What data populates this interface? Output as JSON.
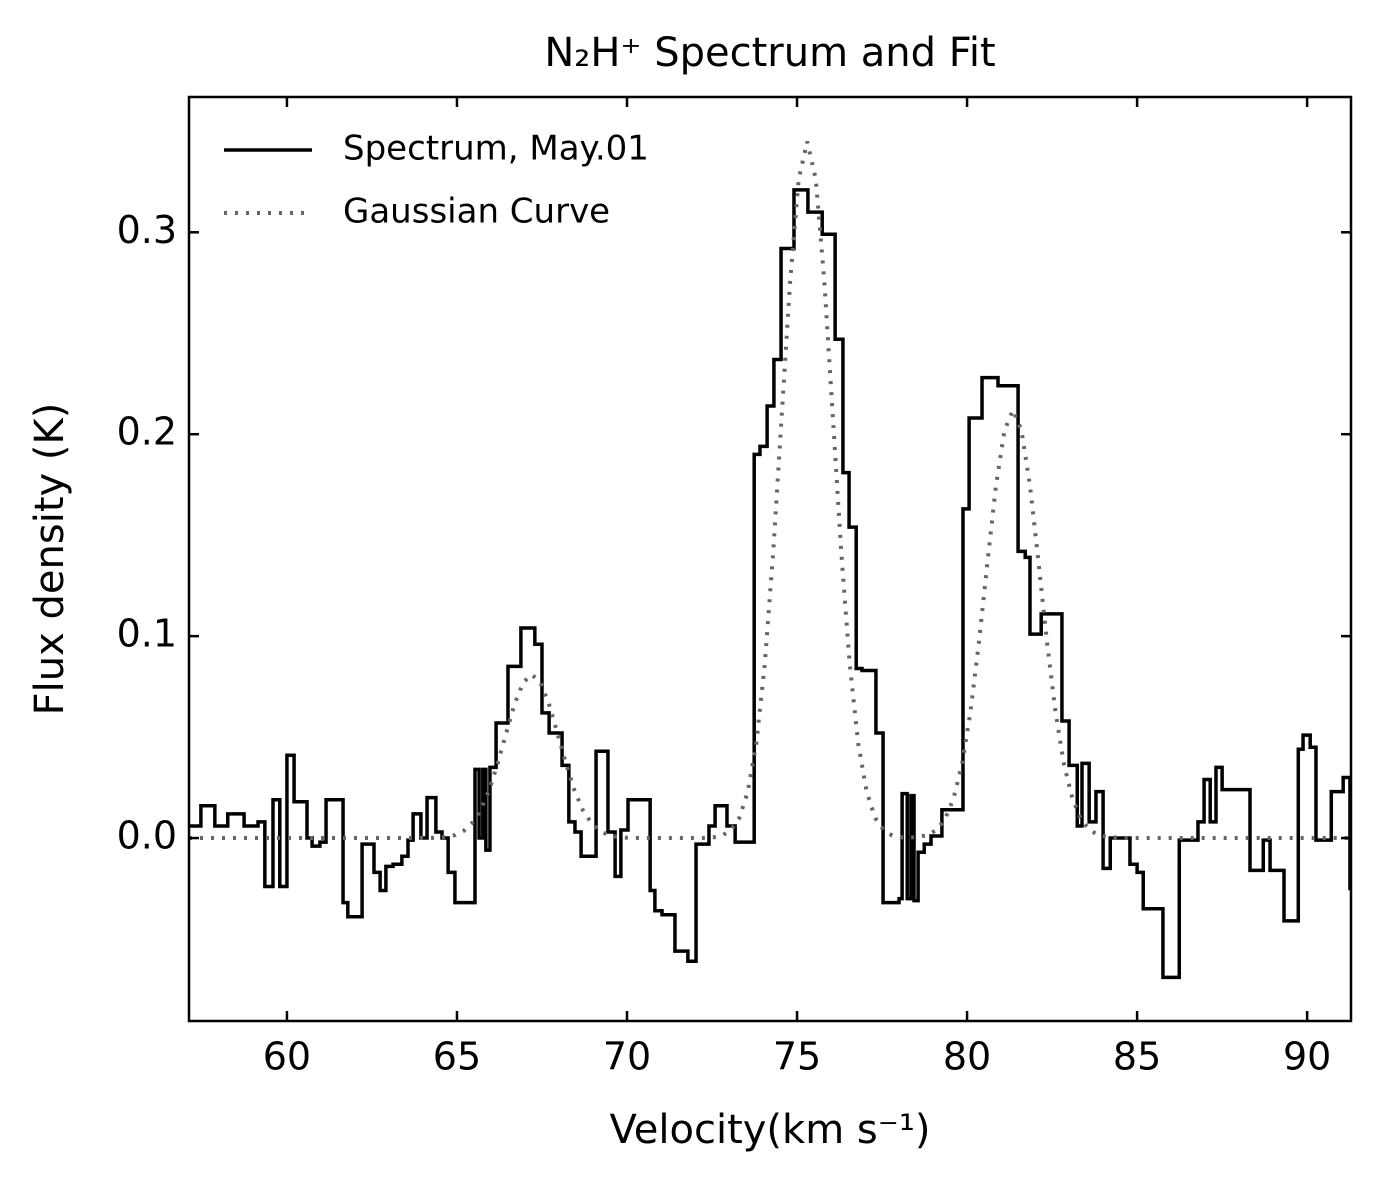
{
  "chart_data": {
    "type": "step",
    "title": "N₂H⁺ Spectrum and Fit",
    "xlabel": "Velocity(km s⁻¹)",
    "ylabel": "Flux density (K)",
    "xlim": [
      57.12,
      91.29
    ],
    "ylim": [
      -0.0906,
      0.367
    ],
    "xticks": [
      60,
      65,
      70,
      75,
      80,
      85,
      90
    ],
    "yticks": [
      {
        "value": 0,
        "label": "0.0"
      },
      0.1,
      0.2,
      0.3
    ],
    "legend": "upper left",
    "series": [
      {
        "name": "Spectrum, May.01",
        "color": "#000000",
        "style": "solid",
        "x": [
          57.12,
          57.47,
          57.88,
          58.26,
          58.74,
          59.15,
          59.35,
          59.59,
          59.79,
          60.0,
          60.21,
          60.59,
          60.74,
          60.97,
          61.15,
          61.65,
          61.79,
          62.21,
          62.56,
          62.74,
          62.91,
          63.12,
          63.38,
          63.56,
          63.71,
          63.94,
          64.12,
          64.38,
          64.56,
          64.74,
          64.94,
          65.53,
          65.65,
          65.76,
          65.85,
          65.97,
          66.15,
          66.5,
          66.88,
          67.29,
          67.5,
          67.71,
          68.09,
          68.29,
          68.47,
          68.65,
          69.09,
          69.44,
          69.65,
          69.82,
          70.03,
          70.68,
          70.82,
          71.03,
          71.41,
          71.79,
          72.03,
          72.41,
          72.59,
          72.94,
          73.18,
          73.74,
          73.91,
          74.12,
          74.32,
          74.53,
          74.91,
          75.32,
          75.74,
          76.12,
          76.35,
          76.53,
          76.74,
          76.91,
          77.32,
          77.53,
          78.0,
          78.09,
          78.24,
          78.35,
          78.44,
          78.56,
          78.74,
          78.94,
          79.26,
          79.88,
          80.06,
          80.44,
          80.91,
          81.5,
          81.71,
          81.85,
          82.18,
          82.79,
          83.0,
          83.24,
          83.38,
          83.59,
          83.79,
          84.0,
          84.21,
          84.79,
          85.0,
          85.18,
          85.76,
          86.24,
          86.79,
          86.97,
          87.15,
          87.32,
          87.5,
          88.32,
          88.71,
          88.91,
          89.32,
          89.74,
          89.88,
          90.09,
          90.26,
          90.71,
          91.06,
          91.26
        ],
        "values": [
          0.006,
          0.016,
          0.006,
          0.012,
          0.006,
          0.008,
          -0.024,
          0.019,
          -0.024,
          0.041,
          0.018,
          0.0,
          -0.004,
          -0.002,
          0.019,
          -0.032,
          -0.039,
          -0.003,
          -0.017,
          -0.026,
          -0.014,
          -0.013,
          -0.009,
          -0.001,
          0.012,
          0.0,
          0.02,
          0.003,
          0.0,
          -0.017,
          -0.032,
          0.034,
          0.0,
          0.034,
          -0.006,
          0.035,
          0.057,
          0.085,
          0.104,
          0.096,
          0.062,
          0.052,
          0.036,
          0.008,
          0.003,
          -0.009,
          0.043,
          0.003,
          -0.019,
          0.004,
          0.019,
          -0.026,
          -0.036,
          -0.038,
          -0.056,
          -0.061,
          -0.003,
          0.006,
          0.016,
          0.006,
          -0.002,
          0.19,
          0.194,
          0.214,
          0.237,
          0.292,
          0.321,
          0.31,
          0.299,
          0.247,
          0.181,
          0.154,
          0.084,
          0.083,
          0.052,
          -0.032,
          -0.03,
          0.022,
          -0.03,
          0.021,
          -0.031,
          -0.007,
          -0.003,
          0.001,
          0.014,
          0.163,
          0.208,
          0.228,
          0.224,
          0.142,
          0.139,
          0.101,
          0.111,
          0.058,
          0.036,
          0.006,
          0.037,
          0.008,
          0.023,
          -0.015,
          0.0,
          -0.013,
          -0.017,
          -0.035,
          -0.069,
          -0.001,
          0.008,
          0.029,
          0.008,
          0.035,
          0.024,
          -0.016,
          -0.001,
          -0.016,
          -0.041,
          0.044,
          0.051,
          0.045,
          -0.001,
          0.023,
          0.03,
          -0.025
        ]
      },
      {
        "name": "Gaussian Curve",
        "color": "#666666",
        "style": "dotted",
        "x": [
          57.12,
          64.2,
          64.45,
          64.7,
          64.95,
          65.2,
          65.45,
          65.7,
          65.95,
          66.2,
          66.45,
          66.7,
          66.95,
          67.2,
          67.45,
          67.7,
          67.95,
          68.2,
          68.45,
          68.7,
          68.95,
          69.2,
          69.45,
          69.7,
          69.95,
          70.5,
          72.3,
          72.55,
          72.8,
          73.05,
          73.3,
          73.55,
          73.8,
          74.05,
          74.3,
          74.55,
          74.8,
          75.05,
          75.3,
          75.55,
          75.8,
          76.05,
          76.3,
          76.55,
          76.8,
          77.05,
          77.3,
          77.55,
          77.8,
          78.05,
          78.3,
          78.6,
          78.85,
          79.1,
          79.35,
          79.6,
          79.85,
          80.1,
          80.35,
          80.6,
          80.85,
          81.1,
          81.35,
          81.6,
          81.85,
          82.1,
          82.35,
          82.6,
          82.85,
          83.1,
          83.35,
          83.6,
          83.85,
          84.1,
          84.6,
          91.29
        ],
        "values": [
          0,
          0,
          0.0002,
          0.0006,
          0.0015,
          0.0036,
          0.0075,
          0.0139,
          0.0239,
          0.0371,
          0.0522,
          0.0667,
          0.0771,
          0.081,
          0.0771,
          0.0667,
          0.0522,
          0.0371,
          0.0239,
          0.0139,
          0.0075,
          0.0036,
          0.0015,
          0.0006,
          0.0002,
          0,
          0,
          0.0004,
          0.0013,
          0.0038,
          0.0099,
          0.0228,
          0.0466,
          0.0859,
          0.1418,
          0.2094,
          0.2763,
          0.3264,
          0.345,
          0.3264,
          0.2763,
          0.2094,
          0.1418,
          0.0859,
          0.0466,
          0.0228,
          0.0099,
          0.0038,
          0.0013,
          0.0004,
          0.0002,
          0.0006,
          0.0016,
          0.004,
          0.0093,
          0.0195,
          0.0365,
          0.0625,
          0.0971,
          0.1367,
          0.1745,
          0.2018,
          0.212,
          0.2018,
          0.1745,
          0.1367,
          0.0971,
          0.0625,
          0.0365,
          0.0195,
          0.0093,
          0.004,
          0.0016,
          0.0006,
          0,
          0
        ]
      }
    ]
  }
}
